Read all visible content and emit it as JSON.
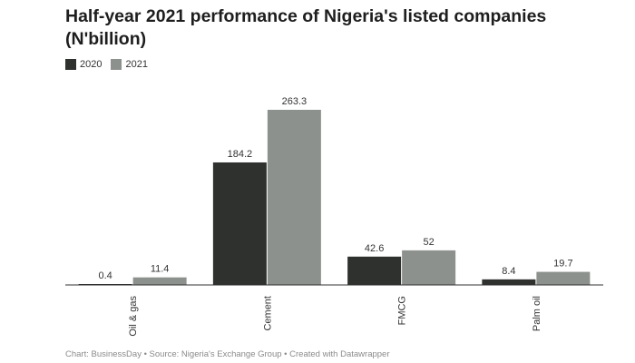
{
  "title": "Half-year 2021 performance of Nigeria's listed companies (N'billion)",
  "legend": [
    {
      "label": "2020",
      "color": "#2f312f"
    },
    {
      "label": "2021",
      "color": "#8d918d"
    }
  ],
  "chart_data": {
    "type": "bar",
    "title": "Half-year 2021 performance of Nigeria's listed companies (N'billion)",
    "categories": [
      "Oil & gas",
      "Cement",
      "FMCG",
      "Palm oil"
    ],
    "series": [
      {
        "name": "2020",
        "values": [
          0.4,
          184.2,
          42.6,
          8.4
        ],
        "labels": [
          "0.4",
          "184.2",
          "42.6",
          "8.4"
        ]
      },
      {
        "name": "2021",
        "values": [
          11.4,
          263.3,
          52,
          19.7
        ],
        "labels": [
          "11.4",
          "263.3",
          "52",
          "19.7"
        ]
      }
    ],
    "xlabel": "",
    "ylabel": "",
    "ylim": [
      0,
      263.3
    ],
    "grid": false,
    "legend_position": "top-left"
  },
  "footer": "Chart: BusinessDay • Source: Nigeria's Exchange Group • Created with Datawrapper"
}
